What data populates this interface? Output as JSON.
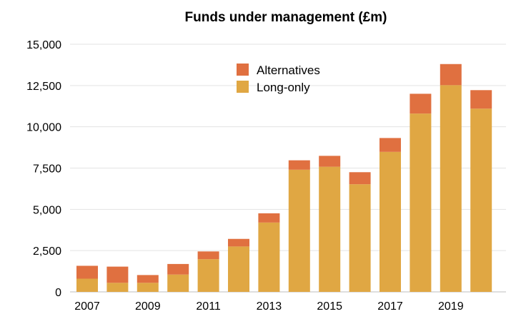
{
  "chart_data": {
    "type": "bar",
    "stacked": true,
    "title": "Funds under management (£m)",
    "xlabel": "",
    "ylabel": "",
    "categories": [
      "2007",
      "2008",
      "2009",
      "2010",
      "2011",
      "2012",
      "2013",
      "2014",
      "2015",
      "2016",
      "2017",
      "2018",
      "2019",
      "2020"
    ],
    "x_tick_labels": [
      "2007",
      "2009",
      "2011",
      "2013",
      "2015",
      "2017",
      "2019"
    ],
    "y_ticks": [
      0,
      2500,
      5000,
      7500,
      10000,
      12500,
      15000
    ],
    "y_tick_labels": [
      "0",
      "2,500",
      "5,000",
      "7,500",
      "10,000",
      "12,500",
      "15,000"
    ],
    "ylim": [
      0,
      15000
    ],
    "grid": true,
    "legend_position": "top-center",
    "series": [
      {
        "name": "Long-only",
        "color": "#E0A743",
        "values": [
          800,
          550,
          550,
          1050,
          1980,
          2750,
          4200,
          7400,
          7580,
          6520,
          8480,
          10800,
          12520,
          11100
        ]
      },
      {
        "name": "Alternatives",
        "color": "#E07040",
        "values": [
          780,
          980,
          470,
          640,
          470,
          460,
          560,
          570,
          660,
          730,
          840,
          1200,
          1280,
          1120
        ]
      }
    ],
    "legend_order": [
      "Alternatives",
      "Long-only"
    ]
  }
}
